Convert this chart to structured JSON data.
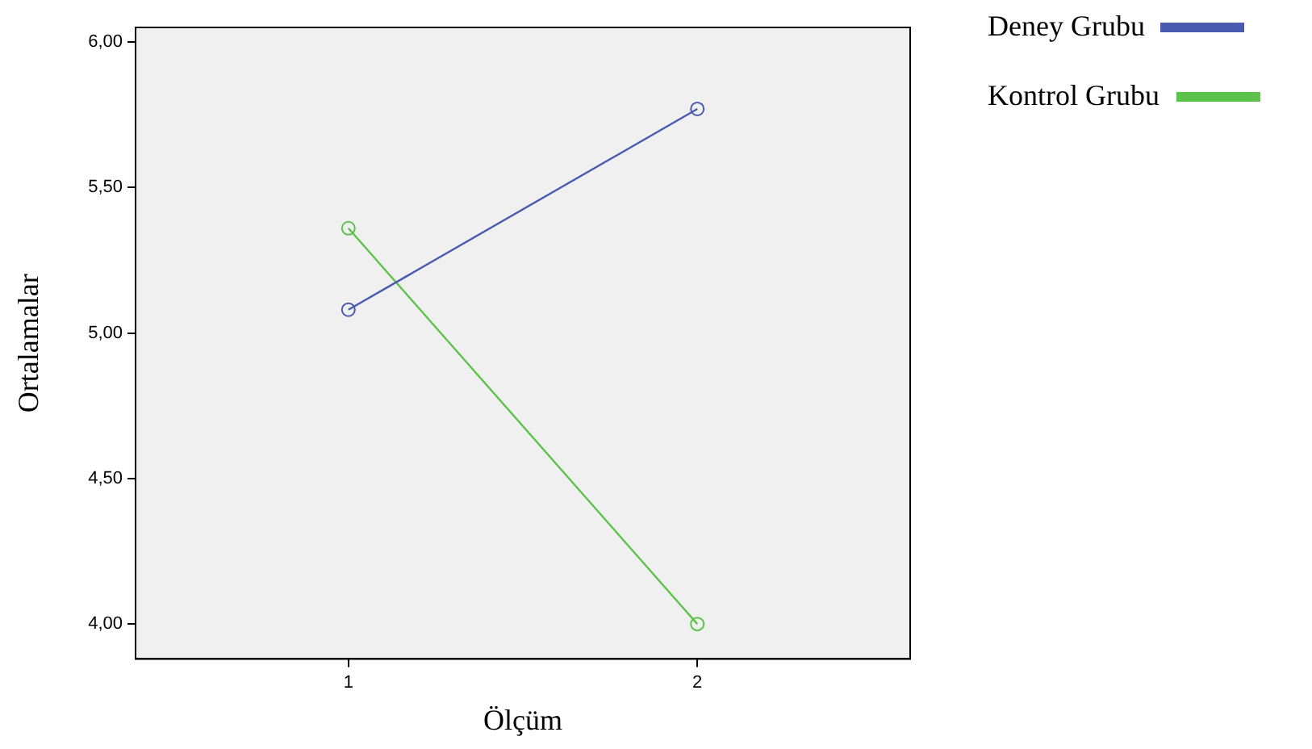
{
  "chart_data": {
    "type": "line",
    "xlabel": "Ölçüm",
    "ylabel": "Ortalamalar",
    "x": [
      1,
      2
    ],
    "series": [
      {
        "name": "Deney Grubu",
        "color": "#4a5ab0",
        "values": [
          5.08,
          5.77
        ]
      },
      {
        "name": "Kontrol Grubu",
        "color": "#5cc24a",
        "values": [
          5.36,
          4.0
        ]
      }
    ],
    "xlim": [
      0.39,
      2.61
    ],
    "xticks": [
      1,
      2
    ],
    "ylim": [
      3.88,
      6.05
    ],
    "yticks": [
      {
        "value": 4,
        "label": "4,00"
      },
      {
        "value": 4.5,
        "label": "4,50"
      },
      {
        "value": 5,
        "label": "5,00"
      },
      {
        "value": 5.5,
        "label": "5,50"
      },
      {
        "value": 6,
        "label": "6,00"
      }
    ],
    "grid": false,
    "legend": "top right",
    "marker": "circle",
    "line_style": "solid"
  }
}
